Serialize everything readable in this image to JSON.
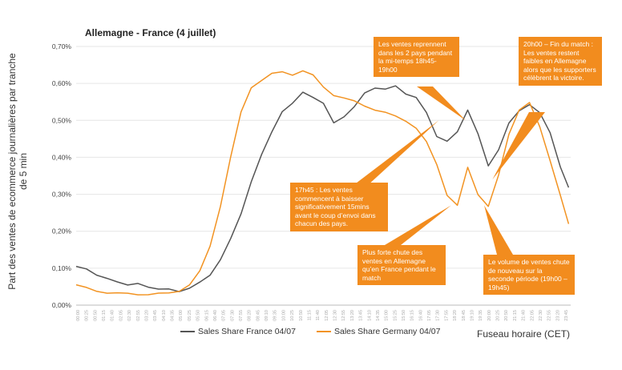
{
  "chart_data": {
    "type": "line",
    "title": "Allemagne - France (4 juillet)",
    "ylabel": "Part des ventes de ecommerce journalières par tranche de 5 min",
    "xlabel": "Fuseau horaire (CET)",
    "ylim": [
      0,
      0.7
    ],
    "y_ticks": [
      "0,00%",
      "0,10%",
      "0,20%",
      "0,30%",
      "0,40%",
      "0,50%",
      "0,60%",
      "0,70%"
    ],
    "x_tick_labels": [
      "00:00",
      "00:25",
      "00:50",
      "01:15",
      "01:40",
      "02:05",
      "02:30",
      "02:55",
      "03:20",
      "03:45",
      "04:10",
      "04:35",
      "05:00",
      "05:25",
      "05:50",
      "06:15",
      "06:40",
      "07:05",
      "07:30",
      "07:55",
      "08:20",
      "08:45",
      "09:10",
      "09:35",
      "10:00",
      "10:25",
      "10:50",
      "11:15",
      "11:40",
      "12:05",
      "12:30",
      "12:55",
      "13:20",
      "13:45",
      "14:10",
      "14:35",
      "15:00",
      "15:25",
      "15:50",
      "16:15",
      "16:40",
      "17:05",
      "17:30",
      "17:55",
      "18:20",
      "18:45",
      "19:10",
      "19:35",
      "20:00",
      "20:25",
      "20:50",
      "21:15",
      "21:40",
      "22:05",
      "22:30",
      "22:55",
      "23:20",
      "23:45"
    ],
    "series": [
      {
        "name": "Sales Share France 04/07",
        "color": "#555555",
        "points": [
          [
            0,
            0.105
          ],
          [
            0.5,
            0.095
          ],
          [
            1,
            0.085
          ],
          [
            1.5,
            0.07
          ],
          [
            2,
            0.062
          ],
          [
            2.5,
            0.058
          ],
          [
            3,
            0.055
          ],
          [
            3.5,
            0.05
          ],
          [
            4,
            0.045
          ],
          [
            4.5,
            0.04
          ],
          [
            5,
            0.04
          ],
          [
            5.5,
            0.045
          ],
          [
            6,
            0.06
          ],
          [
            6.5,
            0.085
          ],
          [
            7,
            0.12
          ],
          [
            7.5,
            0.18
          ],
          [
            8,
            0.25
          ],
          [
            8.5,
            0.33
          ],
          [
            9,
            0.41
          ],
          [
            9.5,
            0.47
          ],
          [
            10,
            0.52
          ],
          [
            10.5,
            0.55
          ],
          [
            11,
            0.575
          ],
          [
            11.5,
            0.56
          ],
          [
            12,
            0.55
          ],
          [
            12.5,
            0.49
          ],
          [
            13,
            0.51
          ],
          [
            13.5,
            0.54
          ],
          [
            14,
            0.57
          ],
          [
            14.5,
            0.59
          ],
          [
            15,
            0.585
          ],
          [
            15.5,
            0.59
          ],
          [
            16,
            0.575
          ],
          [
            16.5,
            0.56
          ],
          [
            17,
            0.52
          ],
          [
            17.5,
            0.46
          ],
          [
            18,
            0.44
          ],
          [
            18.5,
            0.47
          ],
          [
            19,
            0.53
          ],
          [
            19.5,
            0.46
          ],
          [
            20,
            0.38
          ],
          [
            20.5,
            0.42
          ],
          [
            21,
            0.49
          ],
          [
            21.5,
            0.53
          ],
          [
            22,
            0.54
          ],
          [
            22.5,
            0.52
          ],
          [
            23,
            0.47
          ],
          [
            23.5,
            0.37
          ],
          [
            23.9,
            0.32
          ]
        ]
      },
      {
        "name": "Sales Share Germany 04/07",
        "color": "#f29322",
        "points": [
          [
            0,
            0.055
          ],
          [
            0.5,
            0.045
          ],
          [
            1,
            0.038
          ],
          [
            1.5,
            0.035
          ],
          [
            2,
            0.032
          ],
          [
            2.5,
            0.03
          ],
          [
            3,
            0.03
          ],
          [
            3.5,
            0.03
          ],
          [
            4,
            0.03
          ],
          [
            4.5,
            0.032
          ],
          [
            5,
            0.04
          ],
          [
            5.5,
            0.055
          ],
          [
            6,
            0.09
          ],
          [
            6.5,
            0.16
          ],
          [
            7,
            0.27
          ],
          [
            7.5,
            0.4
          ],
          [
            8,
            0.52
          ],
          [
            8.5,
            0.59
          ],
          [
            9,
            0.61
          ],
          [
            9.5,
            0.625
          ],
          [
            10,
            0.63
          ],
          [
            10.5,
            0.625
          ],
          [
            11,
            0.635
          ],
          [
            11.5,
            0.62
          ],
          [
            12,
            0.59
          ],
          [
            12.5,
            0.57
          ],
          [
            13,
            0.56
          ],
          [
            13.5,
            0.55
          ],
          [
            14,
            0.54
          ],
          [
            14.5,
            0.53
          ],
          [
            15,
            0.52
          ],
          [
            15.5,
            0.51
          ],
          [
            16,
            0.5
          ],
          [
            16.5,
            0.48
          ],
          [
            17,
            0.44
          ],
          [
            17.5,
            0.38
          ],
          [
            18,
            0.3
          ],
          [
            18.5,
            0.27
          ],
          [
            19,
            0.37
          ],
          [
            19.5,
            0.3
          ],
          [
            20,
            0.27
          ],
          [
            20.5,
            0.35
          ],
          [
            21,
            0.46
          ],
          [
            21.5,
            0.53
          ],
          [
            22,
            0.55
          ],
          [
            22.5,
            0.48
          ],
          [
            23,
            0.39
          ],
          [
            23.5,
            0.3
          ],
          [
            23.9,
            0.22
          ]
        ]
      }
    ],
    "annotations": [
      {
        "text": "Les ventes reprennent dans les 2 pays pendant la mi-temps 18h45-19h00",
        "x": 18.9,
        "y": 0.5
      },
      {
        "text": "20h00 – Fin du match : Les ventes restent faibles en Allemagne alors que les supporters célèbrent la victoire.",
        "x": 20.2,
        "y": 0.34
      },
      {
        "text": "17h45 : Les ventes commencent à baisser significativement 15mins avant le coup d’envoi dans chacun des pays.",
        "x": 17.6,
        "y": 0.5
      },
      {
        "text": "Plus forte chute des ventes en Allemagne qu’en France pendant le match",
        "x": 18.2,
        "y": 0.27
      },
      {
        "text": "Le volume de ventes chute de nouveau sur la seconde période (19h00 – 19h45)",
        "x": 19.8,
        "y": 0.27
      }
    ]
  }
}
